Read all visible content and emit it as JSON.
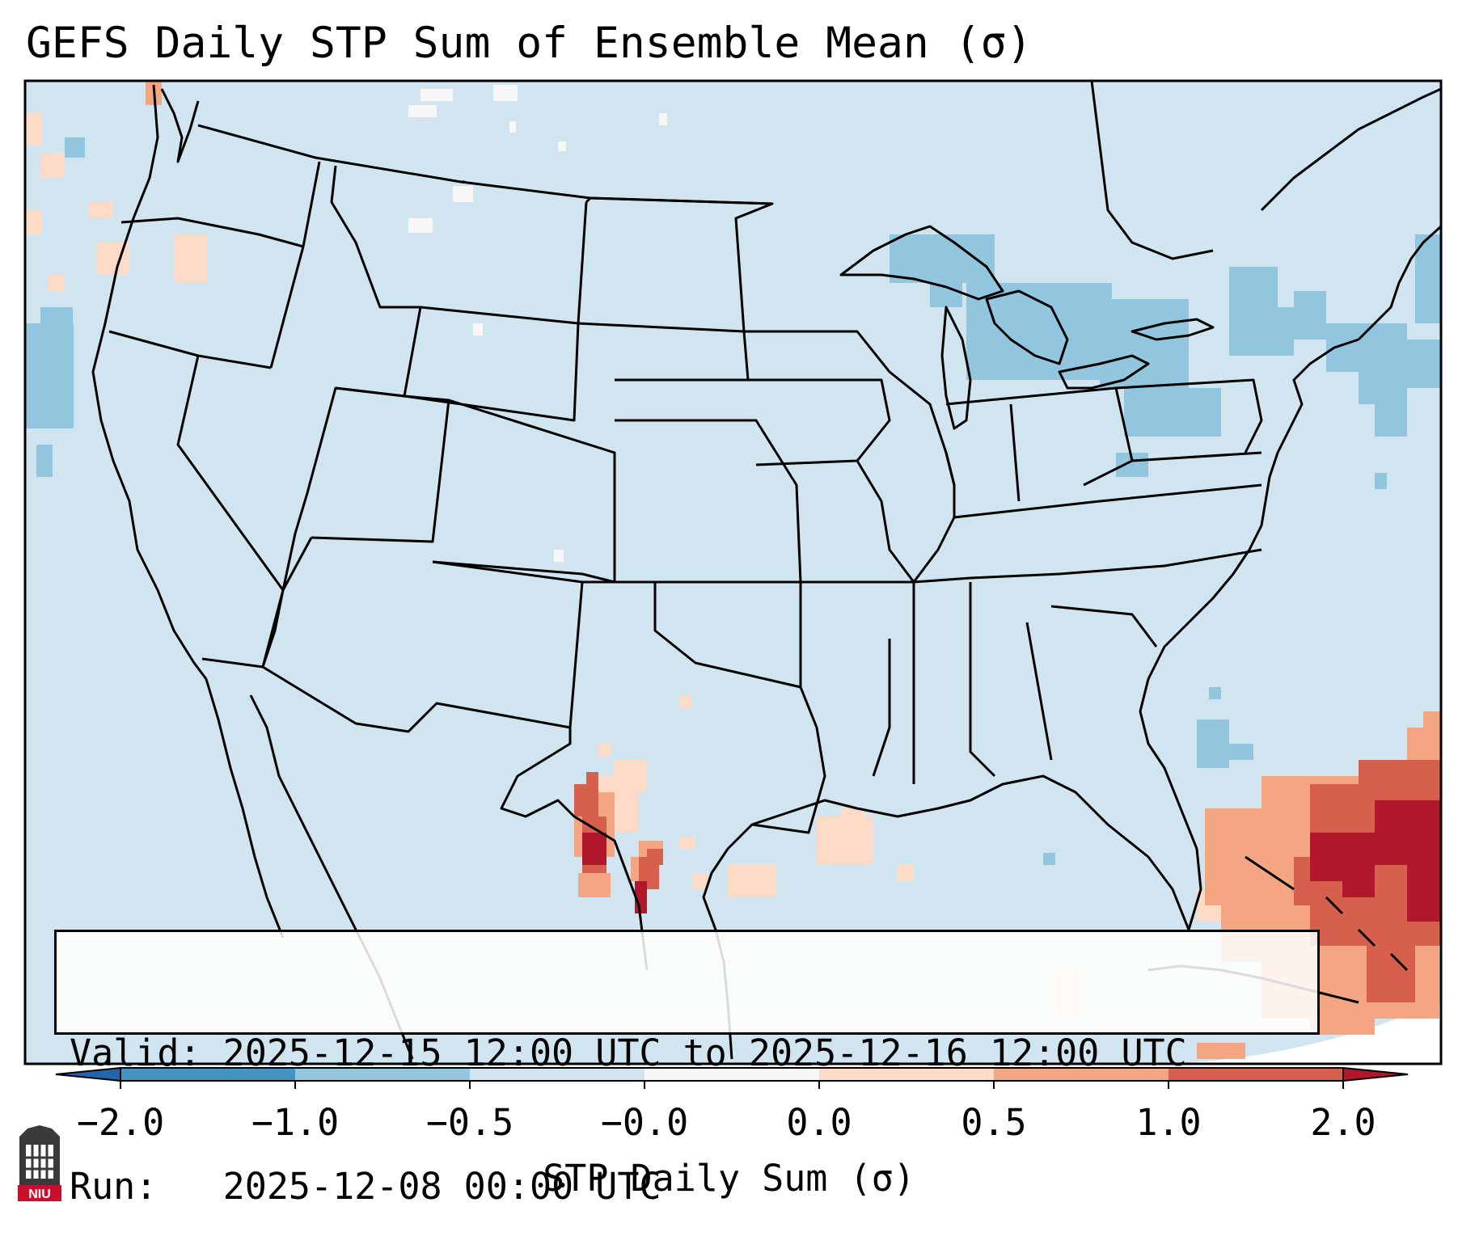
{
  "title": "GEFS Daily STP Sum of Ensemble Mean (σ)",
  "info": {
    "valid_label": "Valid:",
    "valid_value": "2025-12-15 12:00 UTC to 2025-12-16 12:00 UTC",
    "run_label": "Run:",
    "run_value": "2025-12-08 00:00 UTC"
  },
  "colorbar": {
    "label": "STP Daily Sum (σ)",
    "ticks": [
      "−2.0",
      "−1.0",
      "−0.5",
      "−0.0",
      "0.0",
      "0.5",
      "1.0",
      "2.0"
    ],
    "colors": [
      "#4393c3",
      "#92c5de",
      "#d1e5f0",
      "#f7f7f7",
      "#fddbc7",
      "#f4a582",
      "#d6604d"
    ],
    "extend_low": "#2166ac",
    "extend_high": "#b2182b"
  },
  "logo": {
    "text": "NIU"
  },
  "colors": {
    "background_field": "#d1e5f0",
    "lightblue": "#92c5de",
    "peach": "#fddbc7",
    "salmon": "#f4a582",
    "red": "#d6604d",
    "darkred": "#b2182b",
    "white": "#f7f7f7"
  }
}
